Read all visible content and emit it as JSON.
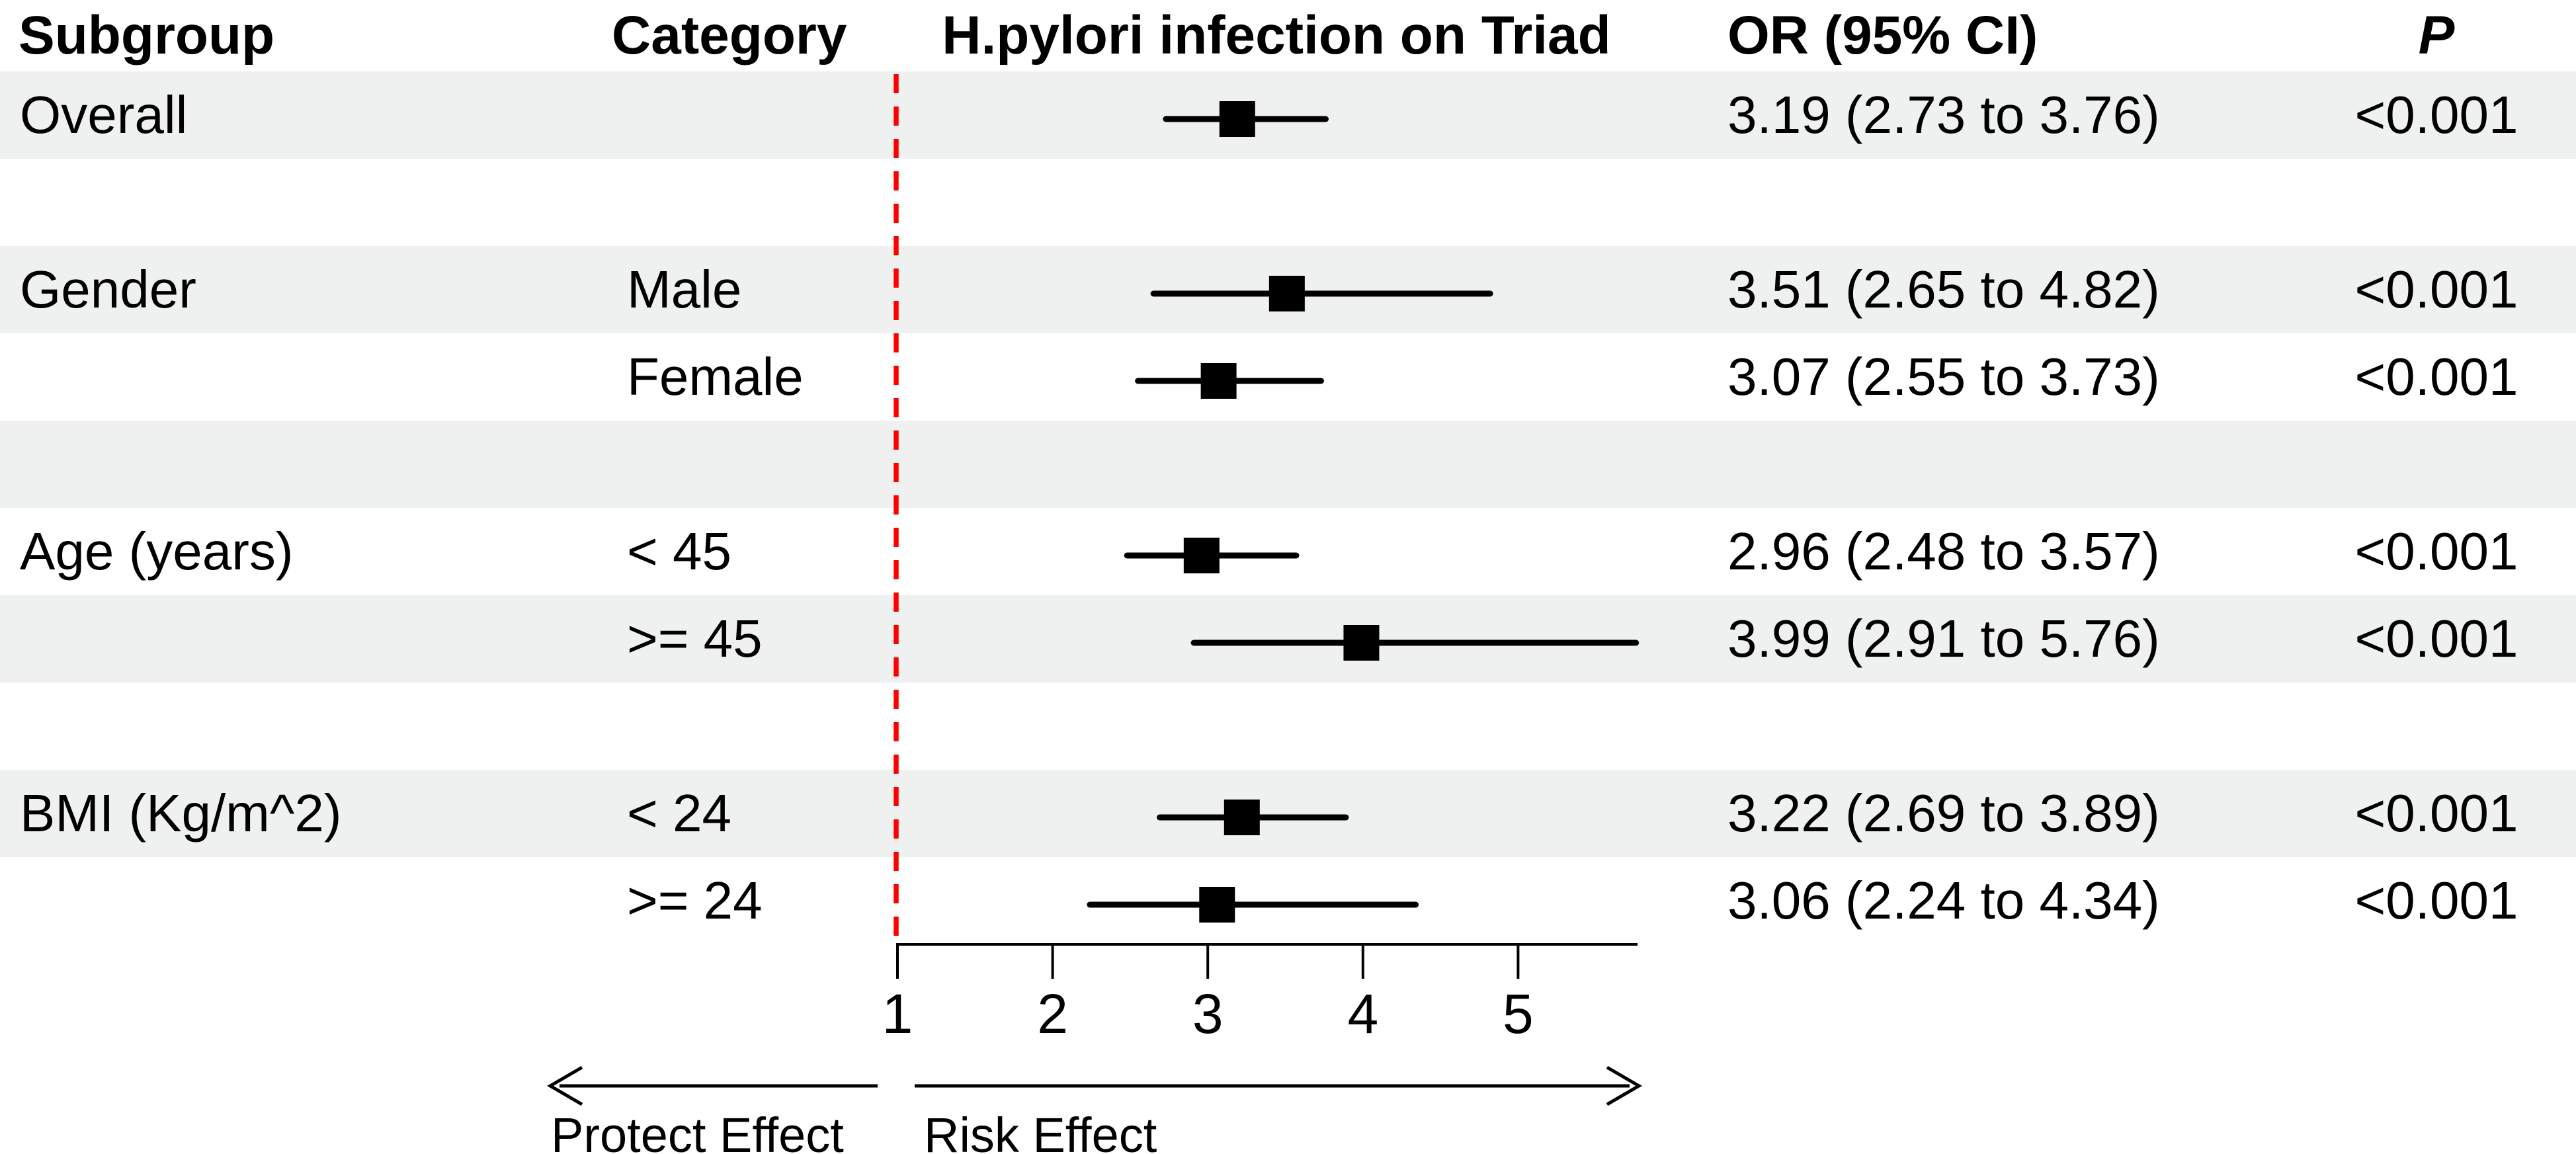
{
  "chart_data": {
    "type": "scatter",
    "subtype": "forest-plot",
    "title": "H.pylori infection on Triad",
    "columns": [
      "Subgroup",
      "Category",
      "H.pylori infection on Triad",
      "OR (95% CI)",
      "P"
    ],
    "x_axis": {
      "ticks": [
        1,
        2,
        3,
        4,
        5
      ],
      "min": 1,
      "max": 5.77,
      "reference_value": 1
    },
    "arrow_labels": {
      "left": "Protect Effect",
      "right": "Risk Effect"
    },
    "rows": [
      {
        "subgroup": "Overall",
        "category": "",
        "or": 3.19,
        "ci_low": 2.73,
        "ci_high": 3.76,
        "or_ci_text": "3.19 (2.73 to 3.76)",
        "p": "<0.001",
        "shaded": true,
        "blank": false
      },
      {
        "subgroup": "",
        "category": "",
        "or": null,
        "ci_low": null,
        "ci_high": null,
        "or_ci_text": "",
        "p": "",
        "shaded": false,
        "blank": true
      },
      {
        "subgroup": "Gender",
        "category": "Male",
        "or": 3.51,
        "ci_low": 2.65,
        "ci_high": 4.82,
        "or_ci_text": "3.51 (2.65 to 4.82)",
        "p": "<0.001",
        "shaded": true,
        "blank": false
      },
      {
        "subgroup": "",
        "category": "Female",
        "or": 3.07,
        "ci_low": 2.55,
        "ci_high": 3.73,
        "or_ci_text": "3.07 (2.55 to 3.73)",
        "p": "<0.001",
        "shaded": false,
        "blank": false
      },
      {
        "subgroup": "",
        "category": "",
        "or": null,
        "ci_low": null,
        "ci_high": null,
        "or_ci_text": "",
        "p": "",
        "shaded": true,
        "blank": true
      },
      {
        "subgroup": "Age (years)",
        "category": "< 45",
        "or": 2.96,
        "ci_low": 2.48,
        "ci_high": 3.57,
        "or_ci_text": "2.96 (2.48 to 3.57)",
        "p": "<0.001",
        "shaded": false,
        "blank": false
      },
      {
        "subgroup": "",
        "category": ">= 45",
        "or": 3.99,
        "ci_low": 2.91,
        "ci_high": 5.76,
        "or_ci_text": "3.99 (2.91 to 5.76)",
        "p": "<0.001",
        "shaded": true,
        "blank": false
      },
      {
        "subgroup": "",
        "category": "",
        "or": null,
        "ci_low": null,
        "ci_high": null,
        "or_ci_text": "",
        "p": "",
        "shaded": false,
        "blank": true
      },
      {
        "subgroup": "BMI (Kg/m^2)",
        "category": "< 24",
        "or": 3.22,
        "ci_low": 2.69,
        "ci_high": 3.89,
        "or_ci_text": "3.22 (2.69 to 3.89)",
        "p": "<0.001",
        "shaded": true,
        "blank": false
      },
      {
        "subgroup": "",
        "category": ">= 24",
        "or": 3.06,
        "ci_low": 2.24,
        "ci_high": 4.34,
        "or_ci_text": "3.06 (2.24 to 4.34)",
        "p": "<0.001",
        "shaded": false,
        "blank": false
      }
    ],
    "layout_hints": {
      "grid": "off",
      "legend": "none",
      "marker_shape": "square",
      "reference_line_style": "dashed"
    }
  },
  "colors": {
    "row_shade": "#eef1ef",
    "reference_line": "#ff0000",
    "marker": "#000000",
    "axis": "#000000",
    "text": "#000000",
    "background": "#ffffff"
  }
}
